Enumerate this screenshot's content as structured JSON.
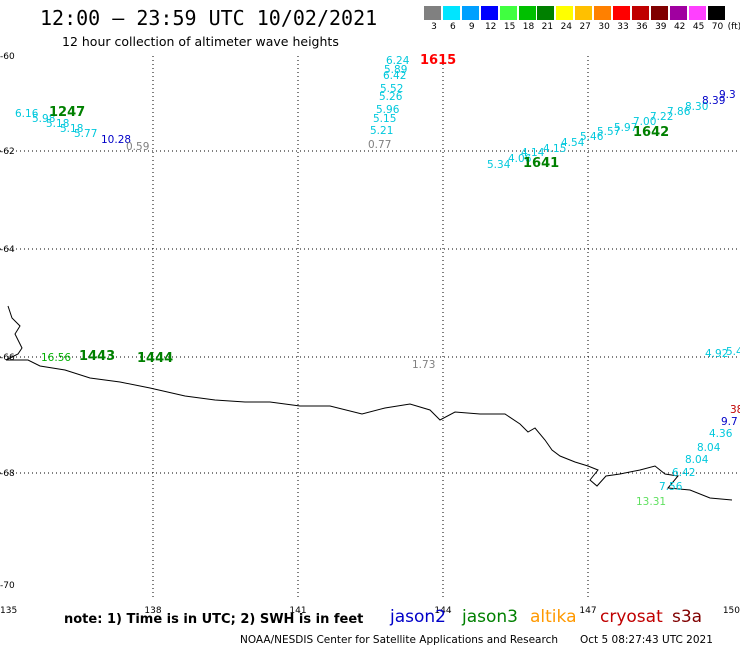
{
  "header": {
    "title": "12:00 – 23:59 UTC 10/02/2021",
    "subtitle": "12 hour collection of altimeter wave heights"
  },
  "color_scale": {
    "unit_label": "(ft)",
    "bins": [
      {
        "label": "3",
        "color": "#808080"
      },
      {
        "label": "6",
        "color": "#00e5ff"
      },
      {
        "label": "9",
        "color": "#00a0ff"
      },
      {
        "label": "12",
        "color": "#0000ff"
      },
      {
        "label": "15",
        "color": "#40ff40"
      },
      {
        "label": "18",
        "color": "#00c000"
      },
      {
        "label": "21",
        "color": "#008000"
      },
      {
        "label": "24",
        "color": "#ffff00"
      },
      {
        "label": "27",
        "color": "#ffc000"
      },
      {
        "label": "30",
        "color": "#ff8000"
      },
      {
        "label": "33",
        "color": "#ff0000"
      },
      {
        "label": "36",
        "color": "#c00000"
      },
      {
        "label": "39",
        "color": "#800000"
      },
      {
        "label": "42",
        "color": "#a000a0"
      },
      {
        "label": "45",
        "color": "#ff40ff"
      },
      {
        "label": "70",
        "color": "#000000"
      }
    ]
  },
  "map": {
    "lat_labels": [
      "-60",
      "-62",
      "-64",
      "-66",
      "-68",
      "-70"
    ],
    "lon_labels": [
      "135",
      "138",
      "141",
      "144",
      "147",
      "150"
    ],
    "grid": "dotted"
  },
  "observations": [
    {
      "text": "6.24",
      "color": "#00c8dc"
    },
    {
      "text": "5.89",
      "color": "#00c8dc"
    },
    {
      "text": "6.42",
      "color": "#00c8dc"
    },
    {
      "text": "5.52",
      "color": "#00c8dc"
    },
    {
      "text": "5.26",
      "color": "#00c8dc"
    },
    {
      "text": "5.96",
      "color": "#00c8dc"
    },
    {
      "text": "5.15",
      "color": "#00c8dc"
    },
    {
      "text": "5.21",
      "color": "#00c8dc"
    },
    {
      "text": "0.77",
      "color": "#808080"
    },
    {
      "text": "1615",
      "color": "#ff0000"
    },
    {
      "text": "6.16",
      "color": "#00c8dc"
    },
    {
      "text": "5.98",
      "color": "#00c8dc"
    },
    {
      "text": "5.18",
      "color": "#00c8dc"
    },
    {
      "text": "5.18",
      "color": "#00c8dc"
    },
    {
      "text": "5.77",
      "color": "#00c8dc"
    },
    {
      "text": "10.28",
      "color": "#0000c8"
    },
    {
      "text": "0.59",
      "color": "#808080"
    },
    {
      "text": "1247",
      "color": "#008000"
    },
    {
      "text": "5.34",
      "color": "#00c8dc"
    },
    {
      "text": "4.06",
      "color": "#00c8dc"
    },
    {
      "text": "4.14",
      "color": "#00c8dc"
    },
    {
      "text": "4.15",
      "color": "#00c8dc"
    },
    {
      "text": "4.54",
      "color": "#00c8dc"
    },
    {
      "text": "5.46",
      "color": "#00c8dc"
    },
    {
      "text": "5.57",
      "color": "#00c8dc"
    },
    {
      "text": "5.97",
      "color": "#00c8dc"
    },
    {
      "text": "7.00",
      "color": "#00c8dc"
    },
    {
      "text": "7.22",
      "color": "#00c8dc"
    },
    {
      "text": "7.86",
      "color": "#00c8dc"
    },
    {
      "text": "8.30",
      "color": "#00c8dc"
    },
    {
      "text": "8.39",
      "color": "#0000c8"
    },
    {
      "text": "9.3",
      "color": "#0000c8"
    },
    {
      "text": "1641",
      "color": "#008000"
    },
    {
      "text": "1642",
      "color": "#008000"
    },
    {
      "text": "16.56",
      "color": "#00b000"
    },
    {
      "text": "1443",
      "color": "#008000"
    },
    {
      "text": "1444",
      "color": "#008000"
    },
    {
      "text": "1.73",
      "color": "#808080"
    },
    {
      "text": "4.92",
      "color": "#00c8dc"
    },
    {
      "text": "5.4",
      "color": "#00c8dc"
    },
    {
      "text": "38",
      "color": "#c00000"
    },
    {
      "text": "9.7",
      "color": "#0000c8"
    },
    {
      "text": "4.36",
      "color": "#00c8dc"
    },
    {
      "text": "8.04",
      "color": "#00c8dc"
    },
    {
      "text": "8.04",
      "color": "#00c8dc"
    },
    {
      "text": "6.42",
      "color": "#00c8dc"
    },
    {
      "text": "7.56",
      "color": "#00c8dc"
    },
    {
      "text": "13.31",
      "color": "#60e060"
    }
  ],
  "footer": {
    "note": "note: 1) Time is in UTC; 2) SWH is in feet",
    "satellites": [
      {
        "name": "jason2",
        "color": "#0000c8"
      },
      {
        "name": "jason3",
        "color": "#008000"
      },
      {
        "name": "altika",
        "color": "#ff9900"
      },
      {
        "name": "cryosat",
        "color": "#c00000"
      },
      {
        "name": "s3a",
        "color": "#800000"
      }
    ],
    "credit": "NOAA/NESDIS Center for Satellite Applications and Research",
    "timestamp": "Oct 5 08:27:43 UTC 2021"
  }
}
